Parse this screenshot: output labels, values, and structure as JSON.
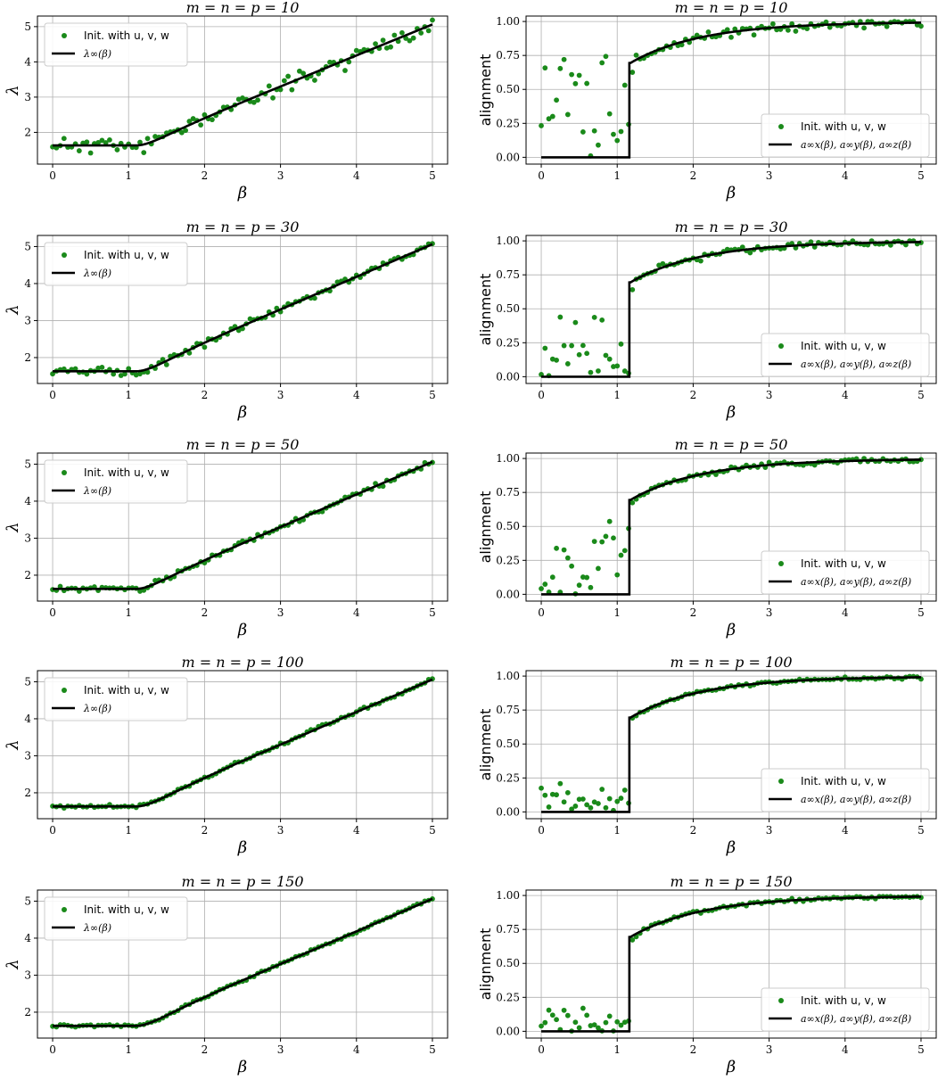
{
  "colors": {
    "points": "#1a8a1a",
    "curve": "#000000",
    "grid": "#b0b0b0"
  },
  "chart_data": [
    {
      "type": "scatter",
      "title": "m = n = p = 10",
      "xlabel": "β",
      "ylabel": "λ",
      "xlim": [
        -0.2,
        5.2
      ],
      "ylim": [
        1.1,
        5.3
      ],
      "xticks": [
        0,
        1,
        2,
        3,
        4,
        5
      ],
      "yticks": [
        2,
        3,
        4,
        5
      ],
      "grid": true,
      "legend_placement": "upper-left",
      "series": [
        {
          "name": "Init. with u, v, w",
          "kind": "scatter",
          "noise": 0.18,
          "seed": 11
        },
        {
          "name": "λ∞(β)",
          "kind": "line",
          "func": "lambda"
        }
      ]
    },
    {
      "type": "scatter",
      "title": "m = n = p = 10",
      "xlabel": "β",
      "ylabel": "alignment",
      "xlim": [
        -0.2,
        5.2
      ],
      "ylim": [
        -0.05,
        1.04
      ],
      "xticks": [
        0,
        1,
        2,
        3,
        4,
        5
      ],
      "yticks": [
        0.0,
        0.25,
        0.5,
        0.75,
        1.0
      ],
      "grid": true,
      "legend_placement": "lower-right",
      "series": [
        {
          "name": "Init. with u, v, w",
          "kind": "scatter",
          "noise": 0.03,
          "low_spread": 0.8,
          "seed": 12
        },
        {
          "name": "a∞x(β), a∞y(β), a∞z(β)",
          "kind": "line",
          "func": "align"
        }
      ]
    },
    {
      "type": "scatter",
      "title": "m = n = p = 30",
      "xlabel": "β",
      "ylabel": "λ",
      "xlim": [
        -0.2,
        5.2
      ],
      "ylim": [
        1.3,
        5.3
      ],
      "xticks": [
        0,
        1,
        2,
        3,
        4,
        5
      ],
      "yticks": [
        2,
        3,
        4,
        5
      ],
      "grid": true,
      "legend_placement": "upper-left",
      "series": [
        {
          "name": "Init. with u, v, w",
          "kind": "scatter",
          "noise": 0.08,
          "seed": 21
        },
        {
          "name": "λ∞(β)",
          "kind": "line",
          "func": "lambda"
        }
      ]
    },
    {
      "type": "scatter",
      "title": "m = n = p = 30",
      "xlabel": "β",
      "ylabel": "alignment",
      "xlim": [
        -0.2,
        5.2
      ],
      "ylim": [
        -0.05,
        1.04
      ],
      "xticks": [
        0,
        1,
        2,
        3,
        4,
        5
      ],
      "yticks": [
        0.0,
        0.25,
        0.5,
        0.75,
        1.0
      ],
      "grid": true,
      "legend_placement": "lower-right",
      "series": [
        {
          "name": "Init. with u, v, w",
          "kind": "scatter",
          "noise": 0.02,
          "low_spread": 0.46,
          "seed": 22
        },
        {
          "name": "a∞x(β), a∞y(β), a∞z(β)",
          "kind": "line",
          "func": "align"
        }
      ]
    },
    {
      "type": "scatter",
      "title": "m = n = p = 50",
      "xlabel": "β",
      "ylabel": "λ",
      "xlim": [
        -0.2,
        5.2
      ],
      "ylim": [
        1.3,
        5.3
      ],
      "xticks": [
        0,
        1,
        2,
        3,
        4,
        5
      ],
      "yticks": [
        2,
        3,
        4,
        5
      ],
      "grid": true,
      "legend_placement": "upper-left",
      "series": [
        {
          "name": "Init. with u, v, w",
          "kind": "scatter",
          "noise": 0.06,
          "seed": 31
        },
        {
          "name": "λ∞(β)",
          "kind": "line",
          "func": "lambda"
        }
      ]
    },
    {
      "type": "scatter",
      "title": "m = n = p = 50",
      "xlabel": "β",
      "ylabel": "alignment",
      "xlim": [
        -0.2,
        5.2
      ],
      "ylim": [
        -0.05,
        1.04
      ],
      "xticks": [
        0,
        1,
        2,
        3,
        4,
        5
      ],
      "yticks": [
        0.0,
        0.25,
        0.5,
        0.75,
        1.0
      ],
      "grid": true,
      "legend_placement": "lower-right",
      "series": [
        {
          "name": "Init. with u, v, w",
          "kind": "scatter",
          "noise": 0.015,
          "low_spread": 0.3,
          "ramp": true,
          "seed": 32
        },
        {
          "name": "a∞x(β), a∞y(β), a∞z(β)",
          "kind": "line",
          "func": "align"
        }
      ]
    },
    {
      "type": "scatter",
      "title": "m = n = p = 100",
      "xlabel": "β",
      "ylabel": "λ",
      "xlim": [
        -0.2,
        5.2
      ],
      "ylim": [
        1.3,
        5.3
      ],
      "xticks": [
        0,
        1,
        2,
        3,
        4,
        5
      ],
      "yticks": [
        2,
        3,
        4,
        5
      ],
      "grid": true,
      "legend_placement": "upper-left",
      "series": [
        {
          "name": "Init. with u, v, w",
          "kind": "scatter",
          "noise": 0.04,
          "seed": 41
        },
        {
          "name": "λ∞(β)",
          "kind": "line",
          "func": "lambda"
        }
      ]
    },
    {
      "type": "scatter",
      "title": "m = n = p = 100",
      "xlabel": "β",
      "ylabel": "alignment",
      "xlim": [
        -0.2,
        5.2
      ],
      "ylim": [
        -0.05,
        1.04
      ],
      "xticks": [
        0,
        1,
        2,
        3,
        4,
        5
      ],
      "yticks": [
        0.0,
        0.25,
        0.5,
        0.75,
        1.0
      ],
      "grid": true,
      "legend_placement": "lower-right",
      "series": [
        {
          "name": "Init. with u, v, w",
          "kind": "scatter",
          "noise": 0.01,
          "low_spread": 0.17,
          "seed": 42
        },
        {
          "name": "a∞x(β), a∞y(β), a∞z(β)",
          "kind": "line",
          "func": "align"
        }
      ]
    },
    {
      "type": "scatter",
      "title": "m = n = p = 150",
      "xlabel": "β",
      "ylabel": "λ",
      "xlim": [
        -0.2,
        5.2
      ],
      "ylim": [
        1.3,
        5.3
      ],
      "xticks": [
        0,
        1,
        2,
        3,
        4,
        5
      ],
      "yticks": [
        2,
        3,
        4,
        5
      ],
      "grid": true,
      "legend_placement": "upper-left",
      "series": [
        {
          "name": "Init. with u, v, w",
          "kind": "scatter",
          "noise": 0.03,
          "seed": 51
        },
        {
          "name": "λ∞(β)",
          "kind": "line",
          "func": "lambda"
        }
      ]
    },
    {
      "type": "scatter",
      "title": "m = n = p = 150",
      "xlabel": "β",
      "ylabel": "alignment",
      "xlim": [
        -0.2,
        5.2
      ],
      "ylim": [
        -0.05,
        1.04
      ],
      "xticks": [
        0,
        1,
        2,
        3,
        4,
        5
      ],
      "yticks": [
        0.0,
        0.25,
        0.5,
        0.75,
        1.0
      ],
      "grid": true,
      "legend_placement": "lower-right",
      "series": [
        {
          "name": "Init. with u, v, w",
          "kind": "scatter",
          "noise": 0.01,
          "low_spread": 0.18,
          "seed": 52
        },
        {
          "name": "a∞x(β), a∞y(β), a∞z(β)",
          "kind": "line",
          "func": "align"
        }
      ]
    }
  ]
}
